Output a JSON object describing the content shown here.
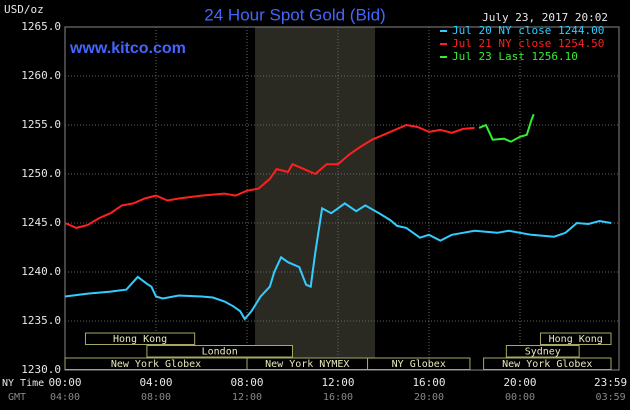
{
  "chart_data": {
    "type": "line",
    "title": "24 Hour Spot Gold (Bid)",
    "subtitle": "www.kitco.com",
    "y_label": "USD/oz",
    "timestamp": "July 23, 2017 20:02",
    "x_label": "NY Time",
    "x2_label": "GMT",
    "xlim": [
      0,
      24
    ],
    "xticks": [
      {
        "value": 0,
        "label": "00:00"
      },
      {
        "value": 4,
        "label": "04:00"
      },
      {
        "value": 8,
        "label": "08:00"
      },
      {
        "value": 12,
        "label": "12:00"
      },
      {
        "value": 16,
        "label": "16:00"
      },
      {
        "value": 20,
        "label": "20:00"
      },
      {
        "value": 23.983,
        "label": "23:59"
      }
    ],
    "x2tick_labels": [
      "04:00",
      "08:00",
      "12:00",
      "16:00",
      "20:00",
      "00:00",
      "03:59"
    ],
    "ylim": [
      1230,
      1265
    ],
    "yticks": [
      {
        "value": 1230,
        "label": "1230.0"
      },
      {
        "value": 1235,
        "label": "1235.0"
      },
      {
        "value": 1240,
        "label": "1240.0"
      },
      {
        "value": 1245,
        "label": "1245.0"
      },
      {
        "value": 1250,
        "label": "1250.0"
      },
      {
        "value": 1255,
        "label": "1255.0"
      },
      {
        "value": 1260,
        "label": "1260.0"
      },
      {
        "value": 1265,
        "label": "1265.0"
      }
    ],
    "grid": true,
    "series": [
      {
        "name": "Jul 20 NY close 1244.00",
        "color": "#33ccff",
        "x": [
          0,
          1,
          2,
          2.7,
          3,
          3.2,
          3.6,
          3.8,
          4,
          4.3,
          5,
          6,
          6.5,
          7,
          7.4,
          7.7,
          7.9,
          8.2,
          8.6,
          9,
          9.2,
          9.5,
          9.8,
          10.3,
          10.6,
          10.8,
          11,
          11.3,
          11.7,
          12,
          12.3,
          12.8,
          13.2,
          13.8,
          14.3,
          14.6,
          15,
          15.6,
          16,
          16.5,
          17,
          17.5,
          18,
          19,
          19.5,
          20.5,
          21.5,
          22,
          22.5,
          23,
          23.5,
          24
        ],
        "values": [
          1237.5,
          1237.8,
          1238,
          1238.2,
          1239,
          1239.5,
          1238.8,
          1238.5,
          1237.5,
          1237.3,
          1237.6,
          1237.5,
          1237.4,
          1237,
          1236.5,
          1236,
          1235.2,
          1236,
          1237.5,
          1238.5,
          1240,
          1241.5,
          1241,
          1240.5,
          1238.7,
          1238.5,
          1242,
          1246.5,
          1246,
          1246.5,
          1247,
          1246.2,
          1246.8,
          1246,
          1245.3,
          1244.7,
          1244.5,
          1243.5,
          1243.8,
          1243.2,
          1243.8,
          1244,
          1244.2,
          1244,
          1244.2,
          1243.8,
          1243.6,
          1244,
          1245,
          1244.9,
          1245.2,
          1245
        ]
      },
      {
        "name": "Jul 21 NY close 1254.50",
        "color": "#ff2020",
        "x": [
          0,
          0.5,
          1,
          1.5,
          2,
          2.5,
          3,
          3.5,
          4,
          4.5,
          5,
          6,
          7,
          7.5,
          8,
          8.5,
          9,
          9.3,
          9.8,
          10,
          10.5,
          11,
          11.5,
          12,
          12.5,
          13,
          13.5,
          14,
          14.5,
          15,
          15.5,
          16,
          16.5,
          17,
          17.5,
          18
        ],
        "values": [
          1245,
          1244.5,
          1244.8,
          1245.5,
          1246,
          1246.8,
          1247,
          1247.5,
          1247.8,
          1247.3,
          1247.5,
          1247.8,
          1248,
          1247.8,
          1248.3,
          1248.5,
          1249.5,
          1250.5,
          1250.2,
          1251,
          1250.5,
          1250,
          1251,
          1251,
          1252,
          1252.8,
          1253.5,
          1254,
          1254.5,
          1255,
          1254.8,
          1254.3,
          1254.5,
          1254.2,
          1254.6,
          1254.7
        ]
      },
      {
        "name": "Jul 23 Last 1256.10",
        "color": "#33ee33",
        "x": [
          18.2,
          18.5,
          18.8,
          19.3,
          19.6,
          20,
          20.3,
          20.5,
          20.6
        ],
        "values": [
          1254.7,
          1255,
          1253.5,
          1253.6,
          1253.3,
          1253.8,
          1254,
          1255.5,
          1256.1
        ]
      }
    ],
    "sessions": [
      [
        {
          "label": "Hong Kong",
          "start": 0.9,
          "end": 5.7
        },
        {
          "label": "Hong Kong",
          "start": 20.9,
          "end": 24
        }
      ],
      [
        {
          "label": "London",
          "start": 3.6,
          "end": 10
        },
        {
          "label": "Sydney",
          "start": 19.4,
          "end": 22.6
        }
      ],
      [
        {
          "label": "New York Globex",
          "start": 0,
          "end": 8
        },
        {
          "label": "New York NYMEX",
          "start": 8,
          "end": 13.3
        },
        {
          "label": "NY Globex",
          "start": 13.3,
          "end": 17.8
        },
        {
          "label": "New York Globex",
          "start": 18.4,
          "end": 24
        }
      ]
    ]
  }
}
